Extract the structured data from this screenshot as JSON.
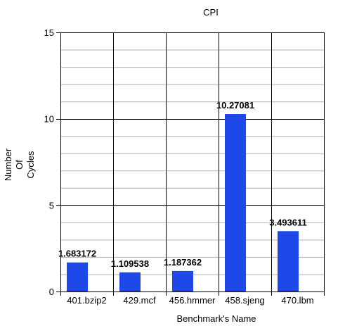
{
  "chart_data": {
    "type": "bar",
    "title": "CPI",
    "xlabel": "Benchmark's Name",
    "ylabel_lines": [
      "Number",
      "Of",
      "Cycles"
    ],
    "categories": [
      "401.bzip2",
      "429.mcf",
      "456.hmmer",
      "458.sjeng",
      "470.lbm"
    ],
    "values": [
      1.683172,
      1.109538,
      1.187362,
      10.27081,
      3.493611
    ],
    "value_labels": [
      "1.683172",
      "1.109538",
      "1.187362",
      "10.27081",
      "3.493611"
    ],
    "ylim": [
      0,
      15
    ],
    "yticks": [
      0,
      5,
      10,
      15
    ],
    "minor_gridlines": true,
    "legend": "none",
    "bar_color": "#1f48e8"
  }
}
